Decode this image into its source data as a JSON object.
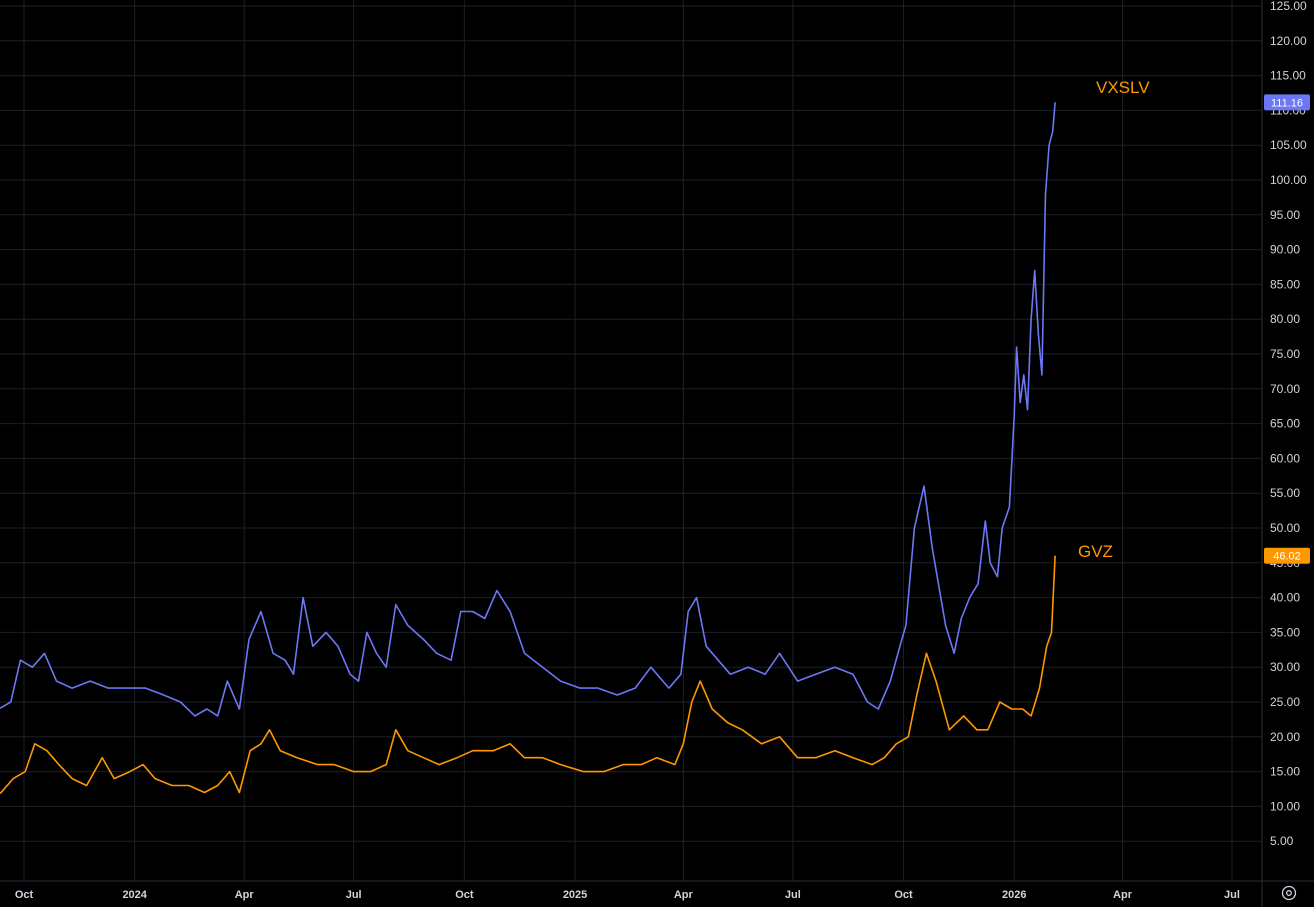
{
  "chart_data": {
    "type": "line",
    "ylim": [
      0,
      125
    ],
    "y_ticks": [
      "5.00",
      "10.00",
      "15.00",
      "20.00",
      "25.00",
      "30.00",
      "35.00",
      "40.00",
      "45.00",
      "50.00",
      "55.00",
      "60.00",
      "65.00",
      "70.00",
      "75.00",
      "80.00",
      "85.00",
      "90.00",
      "95.00",
      "100.00",
      "105.00",
      "110.00",
      "115.00",
      "120.00",
      "125.00"
    ],
    "x_ticks": [
      {
        "label": "Oct",
        "date": "2023-10-01"
      },
      {
        "label": "2024",
        "date": "2024-01-01"
      },
      {
        "label": "Apr",
        "date": "2024-04-01"
      },
      {
        "label": "Jul",
        "date": "2024-07-01"
      },
      {
        "label": "Oct",
        "date": "2024-10-01"
      },
      {
        "label": "2025",
        "date": "2025-01-01"
      },
      {
        "label": "Apr",
        "date": "2025-04-01"
      },
      {
        "label": "Jul",
        "date": "2025-07-01"
      },
      {
        "label": "Oct",
        "date": "2025-10-01"
      },
      {
        "label": "2026",
        "date": "2026-01-01"
      },
      {
        "label": "Apr",
        "date": "2026-04-01"
      },
      {
        "label": "Jul",
        "date": "2026-07-01"
      }
    ],
    "grid": true,
    "series": [
      {
        "name": "VXSLV",
        "color": "#6b77f5",
        "last_value": "111.16",
        "points": [
          [
            "2023-09-01",
            25
          ],
          [
            "2023-09-10",
            24
          ],
          [
            "2023-09-20",
            25
          ],
          [
            "2023-09-28",
            31
          ],
          [
            "2023-10-08",
            30
          ],
          [
            "2023-10-18",
            32
          ],
          [
            "2023-10-28",
            28
          ],
          [
            "2023-11-10",
            27
          ],
          [
            "2023-11-25",
            28
          ],
          [
            "2023-12-10",
            27
          ],
          [
            "2023-12-25",
            27
          ],
          [
            "2024-01-10",
            27
          ],
          [
            "2024-01-25",
            26
          ],
          [
            "2024-02-08",
            25
          ],
          [
            "2024-02-20",
            23
          ],
          [
            "2024-03-01",
            24
          ],
          [
            "2024-03-10",
            23
          ],
          [
            "2024-03-18",
            28
          ],
          [
            "2024-03-28",
            24
          ],
          [
            "2024-04-05",
            34
          ],
          [
            "2024-04-15",
            38
          ],
          [
            "2024-04-25",
            32
          ],
          [
            "2024-05-05",
            31
          ],
          [
            "2024-05-12",
            29
          ],
          [
            "2024-05-20",
            40
          ],
          [
            "2024-05-28",
            33
          ],
          [
            "2024-06-08",
            35
          ],
          [
            "2024-06-18",
            33
          ],
          [
            "2024-06-28",
            29
          ],
          [
            "2024-07-05",
            28
          ],
          [
            "2024-07-12",
            35
          ],
          [
            "2024-07-20",
            32
          ],
          [
            "2024-07-28",
            30
          ],
          [
            "2024-08-05",
            39
          ],
          [
            "2024-08-15",
            36
          ],
          [
            "2024-08-28",
            34
          ],
          [
            "2024-09-08",
            32
          ],
          [
            "2024-09-20",
            31
          ],
          [
            "2024-09-28",
            38
          ],
          [
            "2024-10-08",
            38
          ],
          [
            "2024-10-18",
            37
          ],
          [
            "2024-10-28",
            41
          ],
          [
            "2024-11-08",
            38
          ],
          [
            "2024-11-20",
            32
          ],
          [
            "2024-12-05",
            30
          ],
          [
            "2024-12-20",
            28
          ],
          [
            "2025-01-05",
            27
          ],
          [
            "2025-01-20",
            27
          ],
          [
            "2025-02-05",
            26
          ],
          [
            "2025-02-20",
            27
          ],
          [
            "2025-03-05",
            30
          ],
          [
            "2025-03-20",
            27
          ],
          [
            "2025-03-30",
            29
          ],
          [
            "2025-04-05",
            38
          ],
          [
            "2025-04-12",
            40
          ],
          [
            "2025-04-20",
            33
          ],
          [
            "2025-04-30",
            31
          ],
          [
            "2025-05-10",
            29
          ],
          [
            "2025-05-25",
            30
          ],
          [
            "2025-06-08",
            29
          ],
          [
            "2025-06-20",
            32
          ],
          [
            "2025-07-05",
            28
          ],
          [
            "2025-07-20",
            29
          ],
          [
            "2025-08-05",
            30
          ],
          [
            "2025-08-20",
            29
          ],
          [
            "2025-09-01",
            25
          ],
          [
            "2025-09-10",
            24
          ],
          [
            "2025-09-20",
            28
          ],
          [
            "2025-09-28",
            33
          ],
          [
            "2025-10-03",
            36
          ],
          [
            "2025-10-10",
            50
          ],
          [
            "2025-10-18",
            56
          ],
          [
            "2025-10-25",
            47
          ],
          [
            "2025-11-05",
            36
          ],
          [
            "2025-11-12",
            32
          ],
          [
            "2025-11-18",
            37
          ],
          [
            "2025-11-25",
            40
          ],
          [
            "2025-12-02",
            42
          ],
          [
            "2025-12-08",
            51
          ],
          [
            "2025-12-12",
            45
          ],
          [
            "2025-12-18",
            43
          ],
          [
            "2025-12-22",
            50
          ],
          [
            "2025-12-28",
            53
          ],
          [
            "2026-01-01",
            66
          ],
          [
            "2026-01-03",
            76
          ],
          [
            "2026-01-06",
            68
          ],
          [
            "2026-01-09",
            72
          ],
          [
            "2026-01-12",
            67
          ],
          [
            "2026-01-15",
            80
          ],
          [
            "2026-01-18",
            87
          ],
          [
            "2026-01-21",
            78
          ],
          [
            "2026-01-24",
            72
          ],
          [
            "2026-01-27",
            98
          ],
          [
            "2026-01-30",
            105
          ],
          [
            "2026-02-02",
            107
          ],
          [
            "2026-02-04",
            111.16
          ]
        ]
      },
      {
        "name": "GVZ",
        "color": "#ff9800",
        "last_value": "46.02",
        "points": [
          [
            "2023-09-01",
            11
          ],
          [
            "2023-09-12",
            12
          ],
          [
            "2023-09-22",
            14
          ],
          [
            "2023-10-02",
            15
          ],
          [
            "2023-10-10",
            19
          ],
          [
            "2023-10-20",
            18
          ],
          [
            "2023-10-30",
            16
          ],
          [
            "2023-11-10",
            14
          ],
          [
            "2023-11-22",
            13
          ],
          [
            "2023-12-05",
            17
          ],
          [
            "2023-12-15",
            14
          ],
          [
            "2023-12-28",
            15
          ],
          [
            "2024-01-08",
            16
          ],
          [
            "2024-01-18",
            14
          ],
          [
            "2024-02-01",
            13
          ],
          [
            "2024-02-15",
            13
          ],
          [
            "2024-02-28",
            12
          ],
          [
            "2024-03-10",
            13
          ],
          [
            "2024-03-20",
            15
          ],
          [
            "2024-03-28",
            12
          ],
          [
            "2024-04-06",
            18
          ],
          [
            "2024-04-15",
            19
          ],
          [
            "2024-04-22",
            21
          ],
          [
            "2024-05-01",
            18
          ],
          [
            "2024-05-15",
            17
          ],
          [
            "2024-06-01",
            16
          ],
          [
            "2024-06-15",
            16
          ],
          [
            "2024-07-01",
            15
          ],
          [
            "2024-07-15",
            15
          ],
          [
            "2024-07-28",
            16
          ],
          [
            "2024-08-05",
            21
          ],
          [
            "2024-08-15",
            18
          ],
          [
            "2024-08-28",
            17
          ],
          [
            "2024-09-10",
            16
          ],
          [
            "2024-09-25",
            17
          ],
          [
            "2024-10-08",
            18
          ],
          [
            "2024-10-25",
            18
          ],
          [
            "2024-11-08",
            19
          ],
          [
            "2024-11-20",
            17
          ],
          [
            "2024-12-05",
            17
          ],
          [
            "2024-12-20",
            16
          ],
          [
            "2025-01-08",
            15
          ],
          [
            "2025-01-25",
            15
          ],
          [
            "2025-02-10",
            16
          ],
          [
            "2025-02-25",
            16
          ],
          [
            "2025-03-10",
            17
          ],
          [
            "2025-03-25",
            16
          ],
          [
            "2025-04-01",
            19
          ],
          [
            "2025-04-08",
            25
          ],
          [
            "2025-04-15",
            28
          ],
          [
            "2025-04-25",
            24
          ],
          [
            "2025-05-08",
            22
          ],
          [
            "2025-05-20",
            21
          ],
          [
            "2025-06-05",
            19
          ],
          [
            "2025-06-20",
            20
          ],
          [
            "2025-07-05",
            17
          ],
          [
            "2025-07-20",
            17
          ],
          [
            "2025-08-05",
            18
          ],
          [
            "2025-08-20",
            17
          ],
          [
            "2025-09-05",
            16
          ],
          [
            "2025-09-15",
            17
          ],
          [
            "2025-09-25",
            19
          ],
          [
            "2025-10-05",
            20
          ],
          [
            "2025-10-12",
            26
          ],
          [
            "2025-10-20",
            32
          ],
          [
            "2025-10-28",
            28
          ],
          [
            "2025-11-08",
            21
          ],
          [
            "2025-11-20",
            23
          ],
          [
            "2025-12-01",
            21
          ],
          [
            "2025-12-10",
            21
          ],
          [
            "2025-12-20",
            25
          ],
          [
            "2025-12-30",
            24
          ],
          [
            "2026-01-08",
            24
          ],
          [
            "2026-01-15",
            23
          ],
          [
            "2026-01-22",
            27
          ],
          [
            "2026-01-28",
            33
          ],
          [
            "2026-02-01",
            35
          ],
          [
            "2026-02-04",
            46.02
          ]
        ]
      }
    ]
  },
  "toolbar": {
    "settings_icon": "gear-icon"
  }
}
